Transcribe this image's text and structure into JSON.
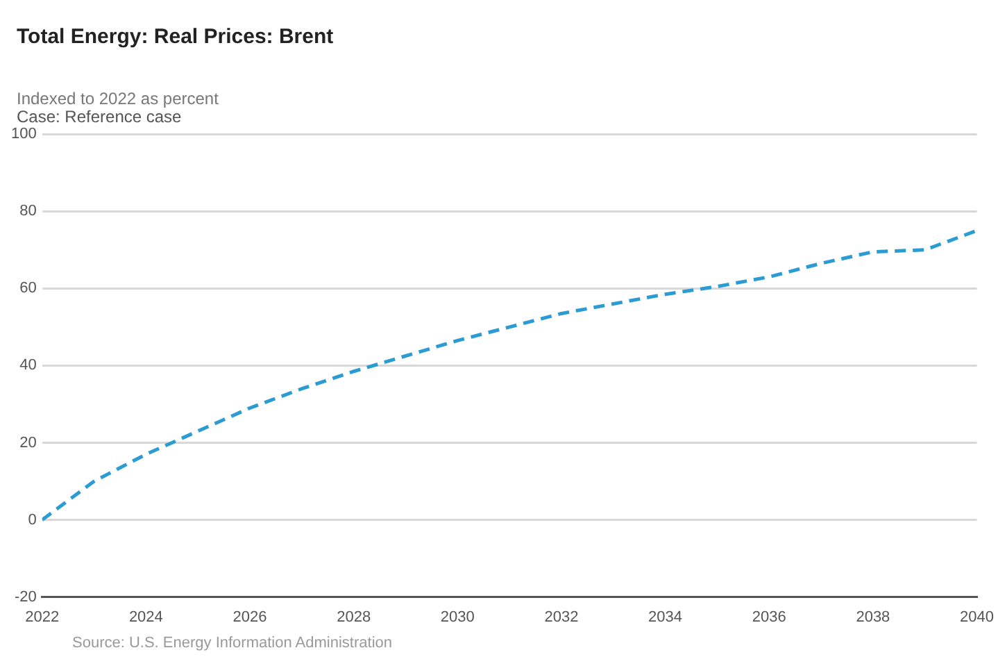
{
  "chart_data": {
    "type": "line",
    "title": "Total Energy: Real Prices: Brent",
    "ylabel": "Indexed to 2022 as percent",
    "subtitle": "Case: Reference case",
    "annotations": [
      "Source: U.S. Energy Information Administration"
    ],
    "x": [
      2022,
      2023,
      2024,
      2025,
      2026,
      2027,
      2028,
      2029,
      2030,
      2031,
      2032,
      2033,
      2034,
      2035,
      2036,
      2037,
      2038,
      2039,
      2040
    ],
    "series": [
      {
        "color": "#2b9bd3",
        "values": [
          0,
          10,
          17,
          23,
          29,
          34,
          38.5,
          42.5,
          46.5,
          50,
          53.5,
          56,
          58.5,
          60.5,
          63,
          66.5,
          69.5,
          70,
          75
        ]
      }
    ],
    "xlim": [
      2022,
      2040
    ],
    "xticks": [
      2022,
      2024,
      2026,
      2028,
      2030,
      2032,
      2034,
      2036,
      2038,
      2040
    ],
    "ylim": [
      -20,
      100
    ],
    "yticks": [
      -20,
      0,
      20,
      40,
      60,
      80,
      100
    ],
    "grid": "y",
    "legend": false,
    "marker": "none",
    "line_style": "dashed"
  }
}
